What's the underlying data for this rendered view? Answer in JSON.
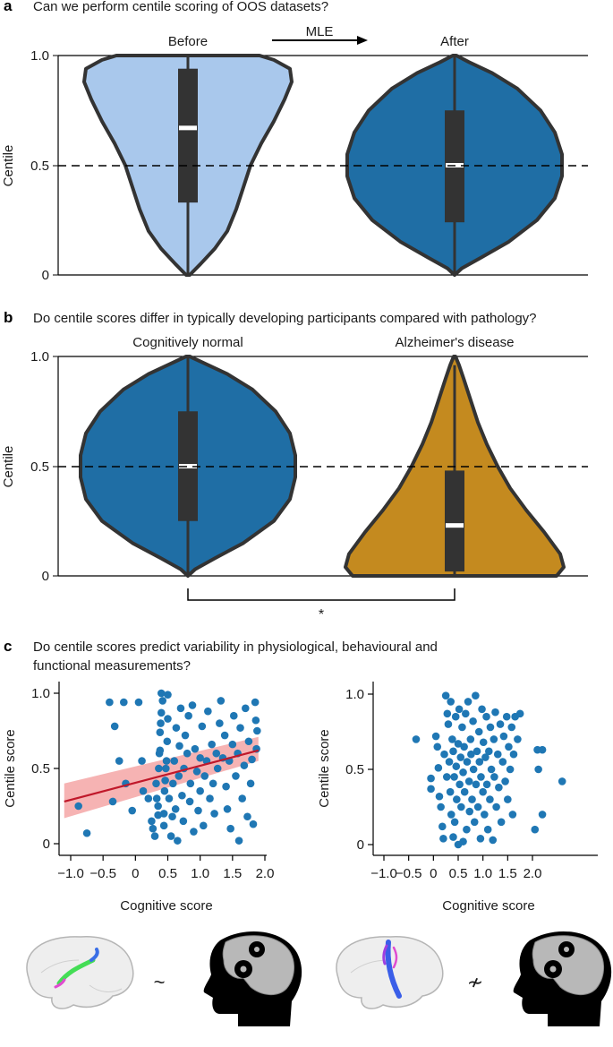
{
  "panel_a": {
    "letter": "a",
    "question": "Can we perform centile scoring of OOS datasets?",
    "arrow_label": "MLE",
    "groups": [
      "Before",
      "After"
    ],
    "ylabel": "Centile",
    "yticks": [
      "0",
      "0.5",
      "1.0"
    ]
  },
  "panel_b": {
    "letter": "b",
    "question": "Do centile scores differ in typically developing participants compared with pathology?",
    "groups": [
      "Cognitively normal",
      "Alzheimer's disease"
    ],
    "ylabel": "Centile",
    "yticks": [
      "0",
      "0.5",
      "1.0"
    ],
    "significance": "*"
  },
  "panel_c": {
    "letter": "c",
    "question_line1": "Do centile scores predict variability in physiological, behavioural and",
    "question_line2": "functional measurements?",
    "left": {
      "xlabel": "Cognitive score",
      "ylabel": "Centile score",
      "xticks": [
        "−1.0",
        "−0.5",
        "0",
        "0.5",
        "1.0",
        "1.5",
        "2.0"
      ],
      "yticks": [
        "0",
        "0.5",
        "1.0"
      ]
    },
    "right": {
      "xlabel": "Cognitive score",
      "ylabel": "Centile score",
      "xticks": [
        "−1.0",
        "−0.5",
        "0",
        "0.5",
        "1.0",
        "1.5",
        "2.0"
      ],
      "yticks": [
        "0",
        "0.5",
        "1.0"
      ]
    },
    "relation_symbols": [
      "~",
      "≁"
    ]
  },
  "colors": {
    "before_violin": "#a9c8ec",
    "after_violin": "#1f6ea5",
    "alz_violin": "#c48a1f",
    "outline": "#333333",
    "points": "#1f77b4",
    "fit_line": "#c0182a",
    "fit_band": "#f4a6a6",
    "box": "#333333"
  },
  "chart_data": [
    {
      "type": "violin",
      "panel": "a",
      "categories": [
        "Before",
        "After"
      ],
      "ylabel": "Centile",
      "ylim": [
        0,
        1
      ],
      "reference_line": 0.5,
      "stats": [
        {
          "name": "Before",
          "median": 0.67,
          "q1": 0.33,
          "q3": 0.94,
          "whisker_low": 0.0,
          "whisker_high": 1.0
        },
        {
          "name": "After",
          "median": 0.5,
          "q1": 0.24,
          "q3": 0.75,
          "whisker_low": 0.0,
          "whisker_high": 1.0
        }
      ]
    },
    {
      "type": "violin",
      "panel": "b",
      "categories": [
        "Cognitively normal",
        "Alzheimer's disease"
      ],
      "ylabel": "Centile",
      "ylim": [
        0,
        1
      ],
      "reference_line": 0.5,
      "significance": "*",
      "stats": [
        {
          "name": "Cognitively normal",
          "median": 0.5,
          "q1": 0.25,
          "q3": 0.75,
          "whisker_low": 0.0,
          "whisker_high": 1.0
        },
        {
          "name": "Alzheimer's disease",
          "median": 0.23,
          "q1": 0.02,
          "q3": 0.48,
          "whisker_low": 0.0,
          "whisker_high": 0.96
        }
      ]
    },
    {
      "type": "scatter",
      "panel": "c-left",
      "xlabel": "Cognitive score",
      "ylabel": "Centile score",
      "xlim": [
        -1.1,
        1.95
      ],
      "ylim": [
        -0.05,
        1.05
      ],
      "fit": {
        "x": [
          -1.1,
          1.9
        ],
        "y": [
          0.28,
          0.62
        ],
        "band_low": [
          0.17,
          0.55
        ],
        "band_high": [
          0.4,
          0.71
        ]
      },
      "points": [
        [
          -0.88,
          0.25
        ],
        [
          -0.75,
          0.07
        ],
        [
          -0.4,
          0.94
        ],
        [
          -0.35,
          0.28
        ],
        [
          -0.32,
          0.78
        ],
        [
          -0.25,
          0.55
        ],
        [
          -0.05,
          0.22
        ],
        [
          -0.15,
          0.4
        ],
        [
          -0.18,
          0.94
        ],
        [
          0.05,
          0.94
        ],
        [
          0.1,
          0.55
        ],
        [
          0.12,
          0.35
        ],
        [
          0.2,
          0.3
        ],
        [
          0.25,
          0.15
        ],
        [
          0.27,
          0.1
        ],
        [
          0.3,
          0.05
        ],
        [
          0.32,
          0.4
        ],
        [
          0.33,
          0.3
        ],
        [
          0.35,
          0.19
        ],
        [
          0.35,
          0.25
        ],
        [
          0.36,
          0.5
        ],
        [
          0.37,
          0.6
        ],
        [
          0.38,
          0.62
        ],
        [
          0.38,
          0.74
        ],
        [
          0.39,
          0.8
        ],
        [
          0.4,
          0.87
        ],
        [
          0.4,
          1.0
        ],
        [
          0.42,
          0.95
        ],
        [
          0.44,
          0.12
        ],
        [
          0.44,
          0.2
        ],
        [
          0.45,
          0.35
        ],
        [
          0.46,
          0.42
        ],
        [
          0.47,
          0.5
        ],
        [
          0.48,
          0.55
        ],
        [
          0.49,
          0.68
        ],
        [
          0.5,
          0.83
        ],
        [
          0.5,
          0.99
        ],
        [
          0.52,
          0.3
        ],
        [
          0.55,
          0.05
        ],
        [
          0.57,
          0.18
        ],
        [
          0.58,
          0.4
        ],
        [
          0.6,
          0.55
        ],
        [
          0.62,
          0.23
        ],
        [
          0.63,
          0.77
        ],
        [
          0.65,
          0.02
        ],
        [
          0.67,
          0.45
        ],
        [
          0.68,
          0.65
        ],
        [
          0.7,
          0.9
        ],
        [
          0.72,
          0.32
        ],
        [
          0.74,
          0.15
        ],
        [
          0.75,
          0.5
        ],
        [
          0.77,
          0.72
        ],
        [
          0.8,
          0.6
        ],
        [
          0.82,
          0.85
        ],
        [
          0.84,
          0.28
        ],
        [
          0.85,
          0.4
        ],
        [
          0.88,
          0.92
        ],
        [
          0.9,
          0.08
        ],
        [
          0.92,
          0.63
        ],
        [
          0.95,
          0.48
        ],
        [
          0.97,
          0.22
        ],
        [
          1.0,
          0.35
        ],
        [
          1.0,
          0.57
        ],
        [
          1.03,
          0.78
        ],
        [
          1.05,
          0.12
        ],
        [
          1.07,
          0.45
        ],
        [
          1.1,
          0.55
        ],
        [
          1.12,
          0.88
        ],
        [
          1.15,
          0.3
        ],
        [
          1.18,
          0.66
        ],
        [
          1.2,
          0.4
        ],
        [
          1.22,
          0.2
        ],
        [
          1.25,
          0.6
        ],
        [
          1.27,
          0.5
        ],
        [
          1.3,
          0.8
        ],
        [
          1.32,
          0.95
        ],
        [
          1.35,
          0.57
        ],
        [
          1.38,
          0.72
        ],
        [
          1.4,
          0.38
        ],
        [
          1.42,
          0.23
        ],
        [
          1.45,
          0.55
        ],
        [
          1.47,
          0.1
        ],
        [
          1.5,
          0.66
        ],
        [
          1.52,
          0.85
        ],
        [
          1.55,
          0.45
        ],
        [
          1.58,
          0.6
        ],
        [
          1.6,
          0.02
        ],
        [
          1.62,
          0.77
        ],
        [
          1.65,
          0.3
        ],
        [
          1.68,
          0.52
        ],
        [
          1.7,
          0.9
        ],
        [
          1.73,
          0.18
        ],
        [
          1.75,
          0.68
        ],
        [
          1.78,
          0.4
        ],
        [
          1.8,
          0.56
        ],
        [
          1.82,
          0.13
        ],
        [
          1.85,
          0.94
        ],
        [
          1.86,
          0.82
        ],
        [
          1.87,
          0.63
        ],
        [
          1.88,
          0.75
        ]
      ]
    },
    {
      "type": "scatter",
      "panel": "c-right",
      "xlabel": "Cognitive score",
      "ylabel": "Centile score",
      "xlim": [
        -1.1,
        2.75
      ],
      "ylim": [
        -0.05,
        1.05
      ],
      "points": [
        [
          -0.35,
          0.7
        ],
        [
          -0.05,
          0.44
        ],
        [
          -0.05,
          0.37
        ],
        [
          0.05,
          0.72
        ],
        [
          0.08,
          0.65
        ],
        [
          0.1,
          0.51
        ],
        [
          0.12,
          0.32
        ],
        [
          0.15,
          0.25
        ],
        [
          0.18,
          0.12
        ],
        [
          0.2,
          0.04
        ],
        [
          0.22,
          0.6
        ],
        [
          0.25,
          0.99
        ],
        [
          0.27,
          0.45
        ],
        [
          0.28,
          0.87
        ],
        [
          0.3,
          0.8
        ],
        [
          0.32,
          0.55
        ],
        [
          0.34,
          0.35
        ],
        [
          0.35,
          0.95
        ],
        [
          0.36,
          0.2
        ],
        [
          0.38,
          0.7
        ],
        [
          0.4,
          0.62
        ],
        [
          0.4,
          0.05
        ],
        [
          0.42,
          0.45
        ],
        [
          0.43,
          0.15
        ],
        [
          0.45,
          0.85
        ],
        [
          0.46,
          0.52
        ],
        [
          0.47,
          0.3
        ],
        [
          0.5,
          0.0
        ],
        [
          0.5,
          0.67
        ],
        [
          0.52,
          0.9
        ],
        [
          0.53,
          0.4
        ],
        [
          0.55,
          0.58
        ],
        [
          0.56,
          0.25
        ],
        [
          0.58,
          0.78
        ],
        [
          0.6,
          0.02
        ],
        [
          0.6,
          0.48
        ],
        [
          0.62,
          0.65
        ],
        [
          0.63,
          0.35
        ],
        [
          0.65,
          0.87
        ],
        [
          0.67,
          0.1
        ],
        [
          0.68,
          0.55
        ],
        [
          0.7,
          0.95
        ],
        [
          0.72,
          0.42
        ],
        [
          0.73,
          0.22
        ],
        [
          0.75,
          0.7
        ],
        [
          0.76,
          0.6
        ],
        [
          0.78,
          0.3
        ],
        [
          0.8,
          0.82
        ],
        [
          0.81,
          0.5
        ],
        [
          0.83,
          0.15
        ],
        [
          0.85,
          0.99
        ],
        [
          0.86,
          0.4
        ],
        [
          0.88,
          0.62
        ],
        [
          0.9,
          0.25
        ],
        [
          0.92,
          0.75
        ],
        [
          0.93,
          0.55
        ],
        [
          0.95,
          0.04
        ],
        [
          0.96,
          0.45
        ],
        [
          0.98,
          0.9
        ],
        [
          1.0,
          0.35
        ],
        [
          1.01,
          0.68
        ],
        [
          1.03,
          0.2
        ],
        [
          1.05,
          0.58
        ],
        [
          1.07,
          0.85
        ],
        [
          1.08,
          0.4
        ],
        [
          1.1,
          0.1
        ],
        [
          1.12,
          0.62
        ],
        [
          1.14,
          0.3
        ],
        [
          1.15,
          0.78
        ],
        [
          1.17,
          0.5
        ],
        [
          1.2,
          0.03
        ],
        [
          1.22,
          0.7
        ],
        [
          1.23,
          0.45
        ],
        [
          1.25,
          0.88
        ],
        [
          1.27,
          0.25
        ],
        [
          1.3,
          0.6
        ],
        [
          1.32,
          0.38
        ],
        [
          1.35,
          0.8
        ],
        [
          1.37,
          0.15
        ],
        [
          1.4,
          0.55
        ],
        [
          1.42,
          0.72
        ],
        [
          1.45,
          0.42
        ],
        [
          1.48,
          0.85
        ],
        [
          1.5,
          0.3
        ],
        [
          1.52,
          0.65
        ],
        [
          1.55,
          0.5
        ],
        [
          1.58,
          0.78
        ],
        [
          1.6,
          0.2
        ],
        [
          1.62,
          0.6
        ],
        [
          1.65,
          0.85
        ],
        [
          1.7,
          0.7
        ],
        [
          1.75,
          0.87
        ],
        [
          2.05,
          0.1
        ],
        [
          2.1,
          0.63
        ],
        [
          2.12,
          0.5
        ],
        [
          2.2,
          0.63
        ],
        [
          2.2,
          0.2
        ],
        [
          2.6,
          0.42
        ]
      ]
    }
  ]
}
